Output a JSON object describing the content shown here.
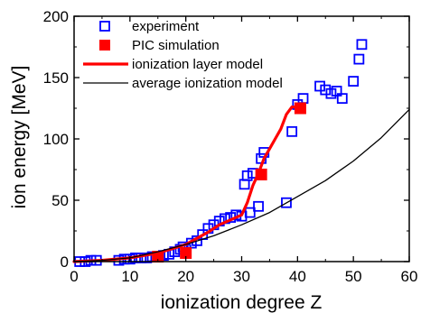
{
  "chart_data": {
    "type": "scatter",
    "title": "",
    "xlabel": "ionization degree Z",
    "ylabel": "ion energy [MeV]",
    "xlim": [
      0,
      60
    ],
    "ylim": [
      0,
      200
    ],
    "xticks": [
      0,
      10,
      20,
      30,
      40,
      50,
      60
    ],
    "yticks": [
      0,
      50,
      100,
      150,
      200
    ],
    "grid": false,
    "legend_position": "top-left",
    "series": [
      {
        "name": "experiment",
        "kind": "scatter",
        "marker": "open-square",
        "color": "#0000ff",
        "x": [
          1,
          2,
          3,
          4,
          8,
          9,
          10,
          11,
          12,
          13,
          14,
          15,
          16,
          17,
          18,
          19,
          19.5,
          20,
          21,
          22,
          23,
          24,
          25,
          26,
          27,
          28,
          29,
          30,
          30.5,
          31,
          31.5,
          32,
          33,
          33.5,
          34,
          38,
          39,
          40,
          41,
          44,
          45,
          46,
          47,
          48,
          50,
          51,
          51.5
        ],
        "y": [
          0,
          0,
          1,
          1,
          1,
          2,
          2,
          3,
          3,
          3,
          4,
          4,
          5,
          6,
          8,
          10,
          12,
          10,
          15,
          17,
          22,
          27,
          30,
          33,
          35,
          36,
          38,
          37,
          63,
          70,
          40,
          72,
          45,
          84,
          89,
          48,
          106,
          128,
          133,
          143,
          140,
          137,
          139,
          133,
          147,
          165,
          177
        ]
      },
      {
        "name": "PIC simulation",
        "kind": "scatter",
        "marker": "filled-square",
        "color": "#ff0000",
        "x": [
          15,
          20,
          33.5,
          40.5
        ],
        "y": [
          4,
          7,
          71,
          125
        ]
      },
      {
        "name": "ionization layer model",
        "kind": "line",
        "color": "#ff0000",
        "x": [
          0,
          5,
          10,
          15,
          18,
          20,
          22,
          24,
          26,
          28,
          30,
          31,
          32,
          33,
          34,
          35,
          36,
          37,
          38,
          39,
          40,
          41
        ],
        "y": [
          0,
          1,
          3,
          7,
          11,
          14,
          19,
          24,
          30,
          34,
          38,
          48,
          62,
          72,
          84,
          92,
          100,
          108,
          120,
          126,
          126,
          126
        ]
      },
      {
        "name": "average ionization model",
        "kind": "line",
        "color": "#000000",
        "x": [
          0,
          5,
          10,
          15,
          20,
          25,
          30,
          35,
          40,
          45,
          50,
          55,
          60
        ],
        "y": [
          0,
          1,
          3,
          8,
          14,
          21,
          30,
          40,
          53,
          66,
          82,
          101,
          124
        ]
      }
    ]
  }
}
